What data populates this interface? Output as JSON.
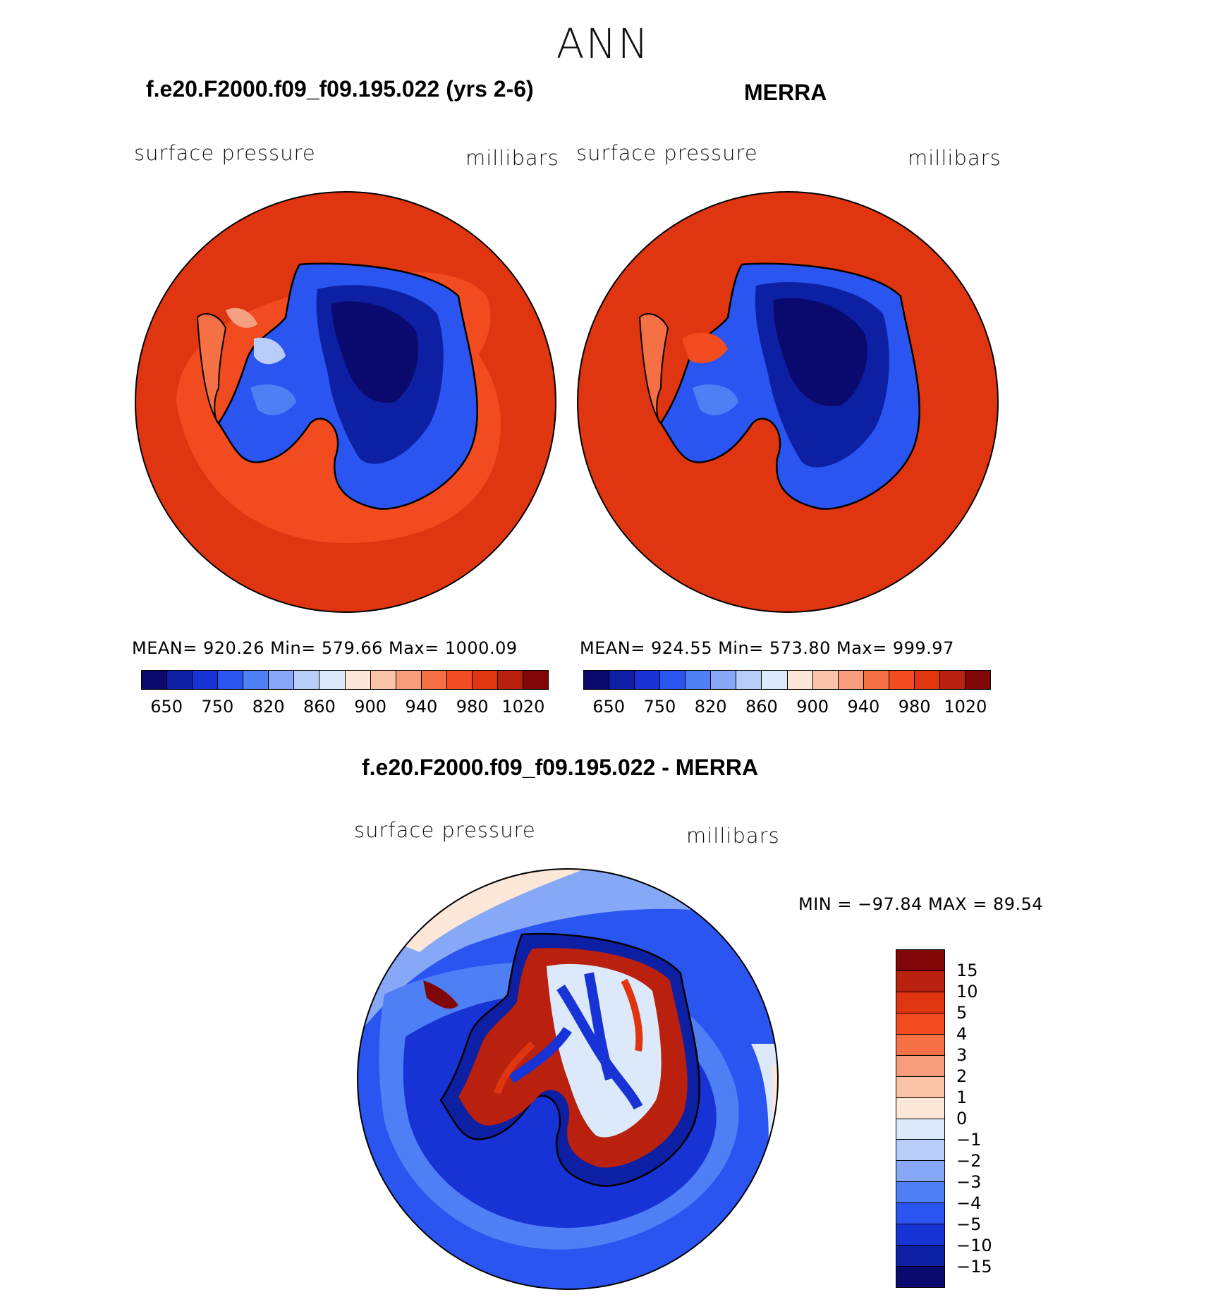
{
  "title": "ANN",
  "panels": {
    "left": {
      "title": "f.e20.F2000.f09_f09.195.022 (yrs 2-6)",
      "variable": "surface pressure",
      "units": "millibars",
      "stats": "MEAN=  920.26    Min=  579.66    Max=  1000.09"
    },
    "right": {
      "title": "MERRA",
      "variable": "surface pressure",
      "units": "millibars",
      "stats": "MEAN=  924.55    Min=  573.80    Max=  999.97"
    },
    "diff": {
      "title": "f.e20.F2000.f09_f09.195.022 - MERRA",
      "variable": "surface pressure",
      "units": "millibars",
      "stats": "MIN  =  −97.84  MAX  =    89.54"
    }
  },
  "colorbar_top": {
    "colors": [
      "#0a0a6e",
      "#0d1fa3",
      "#1733d6",
      "#2b55f0",
      "#4f7ff5",
      "#86a8f7",
      "#b8cef9",
      "#dce9fb",
      "#fde7d9",
      "#fbc4a8",
      "#f79d7b",
      "#f57145",
      "#f24b1f",
      "#df3510",
      "#b9200d",
      "#7f0707"
    ],
    "ticks": [
      "650",
      "750",
      "820",
      "860",
      "900",
      "940",
      "980",
      "1020"
    ]
  },
  "colorbar_diff": {
    "colors": [
      "#7f0707",
      "#b9200d",
      "#df3510",
      "#f24b1f",
      "#f57145",
      "#f79d7b",
      "#fbc4a8",
      "#fde7d9",
      "#dce9fb",
      "#b8cef9",
      "#86a8f7",
      "#4f7ff5",
      "#2b55f0",
      "#1733d6",
      "#0d1fa3",
      "#0a0a6e"
    ],
    "ticks": [
      "15",
      "10",
      "5",
      "4",
      "3",
      "2",
      "1",
      "0",
      "−1",
      "−2",
      "−3",
      "−4",
      "−5",
      "−10",
      "−15"
    ]
  }
}
